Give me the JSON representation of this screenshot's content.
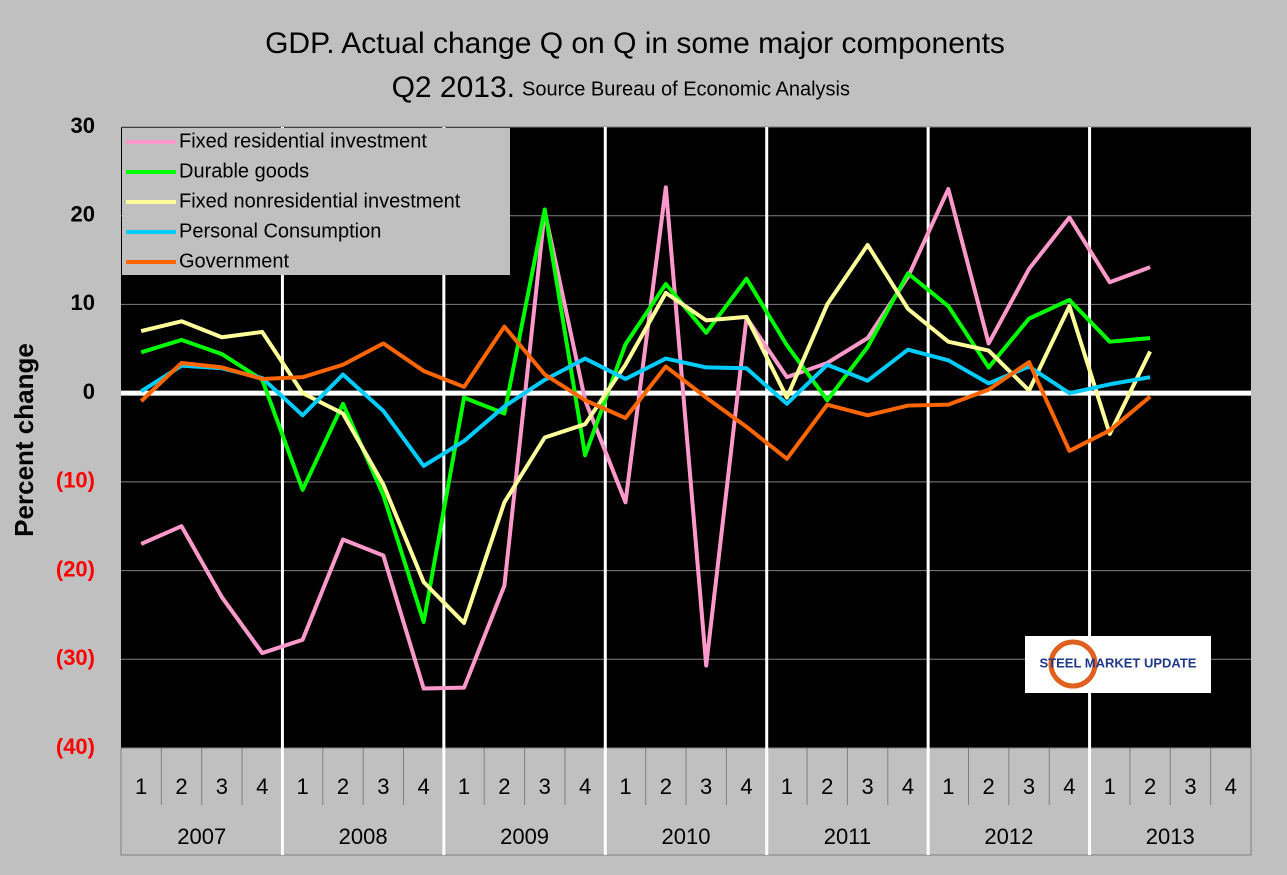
{
  "chart_data": {
    "type": "line",
    "title": "GDP. Actual change Q on Q in some major components",
    "subtitle": "Q2 2013.",
    "source": "Source Bureau of Economic Analysis",
    "y_label": "Percent change",
    "watermark": "STEEL MARKET UPDATE",
    "categories": [
      "1",
      "2",
      "3",
      "4",
      "1",
      "2",
      "3",
      "4",
      "1",
      "2",
      "3",
      "4",
      "1",
      "2",
      "3",
      "4",
      "1",
      "2",
      "3",
      "4",
      "1",
      "2",
      "3",
      "4",
      "1",
      "2",
      "3",
      "4"
    ],
    "years": [
      "2007",
      "2008",
      "2009",
      "2010",
      "2011",
      "2012",
      "2013"
    ],
    "ylim": [
      -40,
      30
    ],
    "yticks": [
      {
        "value": -40,
        "label": "(40)"
      },
      {
        "value": -30,
        "label": "(30)"
      },
      {
        "value": -20,
        "label": "(20)"
      },
      {
        "value": -10,
        "label": "(10)"
      },
      0,
      10,
      20,
      30
    ],
    "grid": true,
    "legend": "top-left",
    "series": [
      {
        "name": "Fixed residential investment",
        "color": "#ff99cc",
        "values": [
          -17,
          -15,
          -23,
          -29.3,
          -27.8,
          -16.5,
          -18.3,
          -33.3,
          -33.2,
          -21.7,
          20.5,
          -0.8,
          -12.3,
          23.2,
          -30.7,
          8.5,
          1.8,
          3.4,
          6.2,
          13.1,
          23,
          5.6,
          14,
          19.8,
          12.5,
          14.2,
          null,
          null
        ]
      },
      {
        "name": "Durable goods",
        "color": "#00ff00",
        "values": [
          4.6,
          6,
          4.4,
          1.5,
          -10.9,
          -1.2,
          -11.5,
          -25.8,
          -0.5,
          -2.3,
          20.7,
          -7,
          5.5,
          12.3,
          6.8,
          12.9,
          5.4,
          -0.8,
          5.2,
          13.5,
          9.8,
          2.9,
          8.4,
          10.5,
          5.8,
          6.2,
          null,
          null
        ]
      },
      {
        "name": "Fixed nonresidential investment",
        "color": "#ffff99",
        "values": [
          7,
          8.1,
          6.3,
          6.9,
          0,
          -2.3,
          -10.3,
          -21.3,
          -25.9,
          -12.3,
          -5,
          -3.5,
          3.2,
          11.3,
          8.2,
          8.6,
          -0.5,
          10,
          16.7,
          9.5,
          5.8,
          4.8,
          0.3,
          9.8,
          -4.6,
          4.7,
          null,
          null
        ]
      },
      {
        "name": "Personal Consumption",
        "color": "#00ccff",
        "values": [
          0.2,
          3.1,
          2.8,
          1.7,
          -2.5,
          2.1,
          -2,
          -8.2,
          -5.4,
          -1.5,
          1.5,
          3.9,
          1.6,
          3.9,
          2.9,
          2.8,
          -1.2,
          3.2,
          1.4,
          4.9,
          3.7,
          1.1,
          3,
          0,
          1,
          1.8,
          null,
          null
        ]
      },
      {
        "name": "Government",
        "color": "#ff6600",
        "values": [
          -0.9,
          3.4,
          2.9,
          1.6,
          1.8,
          3.2,
          5.6,
          2.5,
          0.7,
          7.5,
          2.1,
          -0.8,
          -2.8,
          3,
          -0.5,
          -3.8,
          -7.4,
          -1.3,
          -2.5,
          -1.4,
          -1.3,
          0.4,
          3.5,
          -6.5,
          -4.2,
          -0.4,
          null,
          null
        ]
      }
    ]
  }
}
